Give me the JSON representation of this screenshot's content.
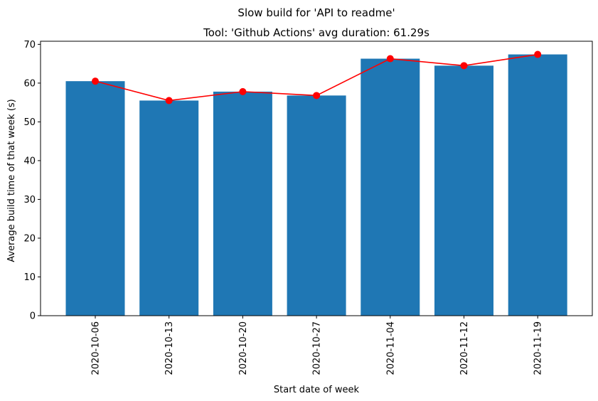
{
  "chart_data": {
    "type": "bar",
    "title": "Slow build for 'API to readme'",
    "subtitle": "Tool: 'Github Actions' avg duration: 61.29s",
    "xlabel": "Start date of week",
    "ylabel": "Average build time of that week (s)",
    "categories": [
      "2020-10-06",
      "2020-10-13",
      "2020-10-20",
      "2020-10-27",
      "2020-11-04",
      "2020-11-12",
      "2020-11-19"
    ],
    "ylim": [
      0,
      70.8
    ],
    "yticks": [
      0,
      10,
      20,
      30,
      40,
      50,
      60,
      70
    ],
    "series": [
      {
        "type": "bar",
        "values": [
          60.5,
          55.5,
          57.8,
          56.8,
          66.3,
          64.5,
          67.4
        ]
      },
      {
        "type": "line",
        "values": [
          60.5,
          55.5,
          57.8,
          56.8,
          66.3,
          64.5,
          67.4
        ]
      }
    ],
    "colors": {
      "bar": "#1f77b4",
      "line": "#ff0000"
    },
    "grid": false
  }
}
